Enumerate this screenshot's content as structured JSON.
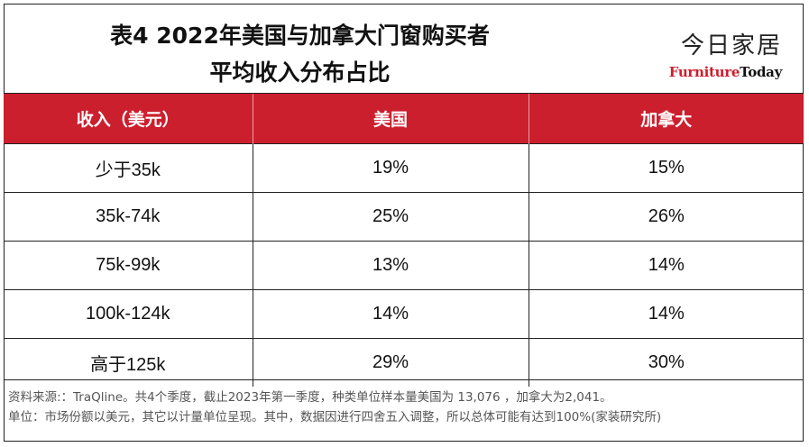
{
  "title": {
    "line1": "表4  2022年美国与加拿大门窗购买者",
    "line2": "平均收入分布占比"
  },
  "logo": {
    "cn": "今日家居",
    "en_part1": "Furniture",
    "en_part2": "Today",
    "brand_color": "#cc1e2d"
  },
  "table": {
    "headers": [
      "收入（美元）",
      "美国",
      "加拿大"
    ],
    "header_color": "#cc1f2e",
    "rows": [
      [
        "少于35k",
        "19%",
        "15%"
      ],
      [
        "35k-74k",
        "25%",
        "26%"
      ],
      [
        "75k-99k",
        "13%",
        "14%"
      ],
      [
        "100k-124k",
        "14%",
        "14%"
      ],
      [
        "高于125k",
        "29%",
        "30%"
      ]
    ]
  },
  "footer": {
    "line1": "资料来源:：TraQline。共4个季度，截止2023年第一季度，种类单位样本量美国为 13,076 ，加拿大为2,041。",
    "line2": "单位：市场份额以美元，其它以计量单位呈现。其中，数据因进行四舍五入调整，所以总体可能有达到100%(家装研究所)"
  }
}
